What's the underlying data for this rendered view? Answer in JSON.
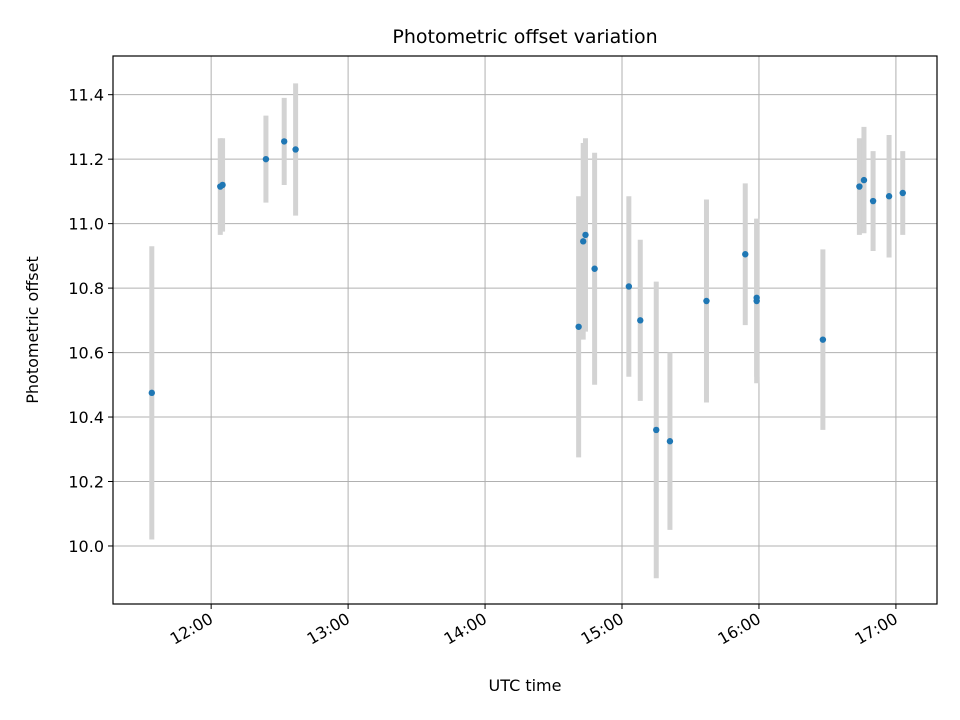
{
  "chart_data": {
    "type": "scatter",
    "title": "Photometric offset variation",
    "xlabel": "UTC time",
    "ylabel": "Photometric offset",
    "x_ticks": [
      "12:00",
      "13:00",
      "14:00",
      "15:00",
      "16:00",
      "17:00"
    ],
    "y_ticks": [
      "10.0",
      "10.2",
      "10.4",
      "10.6",
      "10.8",
      "11.0",
      "11.2",
      "11.4"
    ],
    "xlim": [
      "11:17",
      "17:18"
    ],
    "ylim": [
      9.82,
      11.52
    ],
    "grid": true,
    "legend": "none",
    "colors": {
      "point": "#1f77b4",
      "errorbar": "#d3d3d3",
      "grid": "#b0b0b0"
    },
    "series": [
      {
        "points": [
          {
            "x": "11:34",
            "y": 10.475,
            "err": 0.455
          },
          {
            "x": "12:04",
            "y": 11.115,
            "err": 0.15
          },
          {
            "x": "12:05",
            "y": 11.12,
            "err": 0.145
          },
          {
            "x": "12:24",
            "y": 11.2,
            "err": 0.135
          },
          {
            "x": "12:32",
            "y": 11.255,
            "err": 0.135
          },
          {
            "x": "12:37",
            "y": 11.23,
            "err": 0.205
          },
          {
            "x": "14:41",
            "y": 10.68,
            "err": 0.405
          },
          {
            "x": "14:43",
            "y": 10.945,
            "err": 0.305
          },
          {
            "x": "14:44",
            "y": 10.965,
            "err": 0.3
          },
          {
            "x": "14:48",
            "y": 10.86,
            "err": 0.36
          },
          {
            "x": "15:03",
            "y": 10.805,
            "err": 0.28
          },
          {
            "x": "15:08",
            "y": 10.7,
            "err": 0.25
          },
          {
            "x": "15:15",
            "y": 10.36,
            "err": 0.46
          },
          {
            "x": "15:21",
            "y": 10.325,
            "err": 0.275
          },
          {
            "x": "15:37",
            "y": 10.76,
            "err": 0.315
          },
          {
            "x": "15:54",
            "y": 10.905,
            "err": 0.22
          },
          {
            "x": "15:59",
            "y": 10.76,
            "err": 0.255
          },
          {
            "x": "15:59",
            "y": 10.77,
            "err": 0.245
          },
          {
            "x": "16:28",
            "y": 10.64,
            "err": 0.28
          },
          {
            "x": "16:44",
            "y": 11.115,
            "err": 0.15
          },
          {
            "x": "16:46",
            "y": 11.135,
            "err": 0.165
          },
          {
            "x": "16:50",
            "y": 11.07,
            "err": 0.155
          },
          {
            "x": "16:57",
            "y": 11.085,
            "err": 0.19
          },
          {
            "x": "17:03",
            "y": 11.095,
            "err": 0.13
          }
        ]
      }
    ]
  }
}
